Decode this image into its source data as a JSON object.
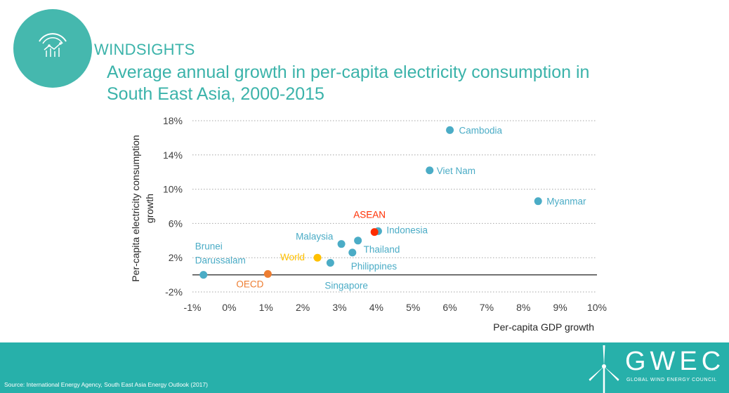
{
  "header": {
    "brand": "WINDSIGHTS",
    "title_line1": "Average annual growth in per-capita electricity consumption in",
    "title_line2": "South East Asia, 2000-2015"
  },
  "chart_data": {
    "type": "scatter",
    "title": "Average annual growth in per-capita electricity consumption in South East Asia, 2000-2015",
    "xlabel": "Per-capita GDP growth",
    "ylabel": "Per-capita electricity consumption growth",
    "xlim": [
      -1,
      10
    ],
    "ylim": [
      -2,
      18
    ],
    "xticks": [
      "-1%",
      "0%",
      "1%",
      "2%",
      "3%",
      "4%",
      "5%",
      "6%",
      "7%",
      "8%",
      "9%",
      "10%"
    ],
    "yticks": [
      "-2%",
      "2%",
      "6%",
      "10%",
      "14%",
      "18%"
    ],
    "ytick_values": [
      -2,
      2,
      6,
      10,
      14,
      18
    ],
    "grid": "horizontal dotted",
    "points": [
      {
        "label": "Cambodia",
        "x": 6.0,
        "y": 16.9,
        "color": "#4bacc6"
      },
      {
        "label": "Viet Nam",
        "x": 5.45,
        "y": 12.2,
        "color": "#4bacc6"
      },
      {
        "label": "Myanmar",
        "x": 8.4,
        "y": 8.6,
        "color": "#4bacc6"
      },
      {
        "label": "Indonesia",
        "x": 4.05,
        "y": 5.1,
        "color": "#4bacc6"
      },
      {
        "label": "ASEAN",
        "x": 3.95,
        "y": 5.0,
        "color": "#ff2d00"
      },
      {
        "label": "Thailand",
        "x": 3.5,
        "y": 4.0,
        "color": "#4bacc6"
      },
      {
        "label": "Malaysia",
        "x": 3.05,
        "y": 3.6,
        "color": "#4bacc6"
      },
      {
        "label": "Philippines",
        "x": 3.35,
        "y": 2.6,
        "color": "#4bacc6"
      },
      {
        "label": "World",
        "x": 2.4,
        "y": 2.0,
        "color": "#ffc000"
      },
      {
        "label": "Singapore",
        "x": 2.75,
        "y": 1.4,
        "color": "#4bacc6"
      },
      {
        "label": "Brunei Darussalam",
        "x": -0.7,
        "y": 0.0,
        "color": "#4bacc6"
      },
      {
        "label": "OECD",
        "x": 1.05,
        "y": 0.1,
        "color": "#ed7d31"
      }
    ]
  },
  "footer": {
    "source": "Source: International Energy Agency, South East Asia Energy Outlook (2017)",
    "gwec_name": "GWEC",
    "gwec_full": "GLOBAL WIND ENERGY COUNCIL"
  },
  "colors": {
    "teal": "#3bb3aa",
    "footer_bg": "#27b0aa",
    "country": "#4bacc6",
    "asean": "#ff2d00",
    "world": "#ffc000",
    "oecd": "#ed7d31"
  }
}
